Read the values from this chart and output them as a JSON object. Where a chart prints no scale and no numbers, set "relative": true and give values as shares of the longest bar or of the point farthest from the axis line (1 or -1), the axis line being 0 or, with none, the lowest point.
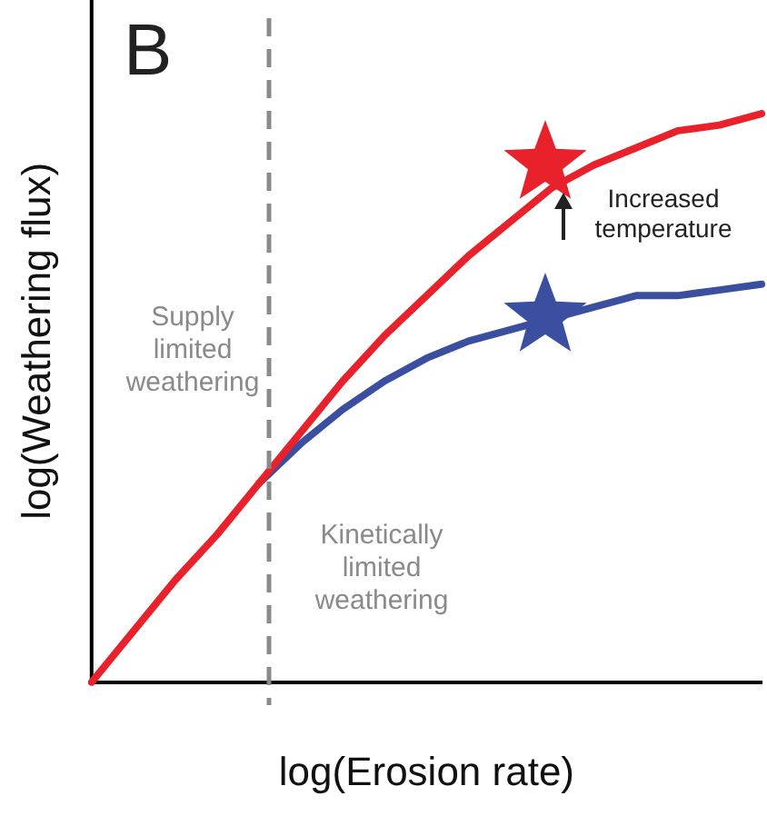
{
  "chart_data": {
    "type": "line",
    "relative": true,
    "xlabel": "log(Erosion rate)",
    "ylabel": "log(Weathering flux)",
    "categories": [
      null,
      null,
      null,
      null,
      null,
      null,
      null,
      null,
      null,
      null,
      null,
      null,
      null,
      null,
      null,
      null,
      null
    ],
    "grid": false,
    "legend": false,
    "marker": "none",
    "line_style": "solid",
    "series": [
      {
        "color": "#e8212a",
        "values": [
          0,
          0.09,
          0.18,
          0.26,
          0.35,
          0.44,
          0.53,
          0.61,
          0.68,
          0.75,
          0.81,
          0.87,
          0.91,
          0.94,
          0.97,
          0.98,
          1
        ]
      },
      {
        "color": "#3a4fa0",
        "values": [
          null,
          null,
          null,
          null,
          0.35,
          0.42,
          0.48,
          0.53,
          0.57,
          0.6,
          0.62,
          null,
          0.66,
          0.68,
          0.68,
          0.69,
          0.7
        ]
      }
    ],
    "annotations": [
      "B",
      "Supply\nlimited\nweathering",
      "Kinetically\nlimited\nweathering",
      "Increased\ntemperature"
    ]
  }
}
